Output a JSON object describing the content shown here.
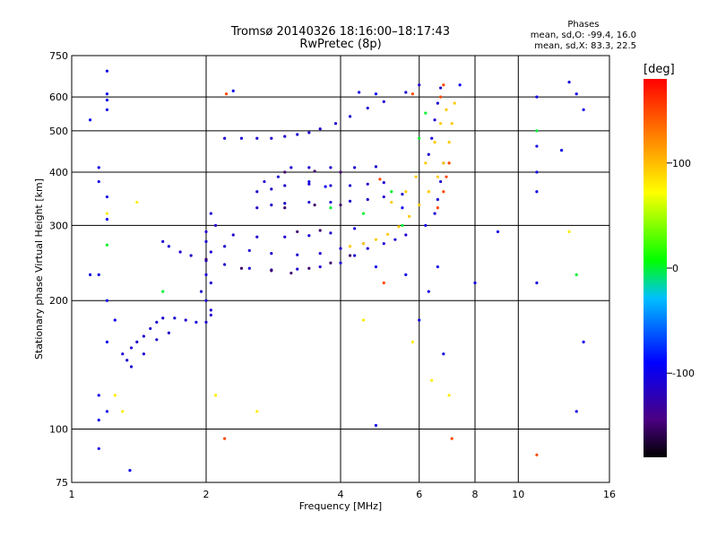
{
  "header": {
    "title": "Tromsø 20140326 18:16:00–18:17:43",
    "subtitle": "RwPretec (8p)"
  },
  "stats": {
    "heading": "Phases",
    "line_o": "mean, sd,O: -99.4, 16.0",
    "line_x": "mean, sd,X:  83.3, 22.5"
  },
  "colorbar": {
    "unit": "[deg]",
    "ticks": [
      "100",
      "0",
      "-100"
    ],
    "range": [
      -180,
      180
    ]
  },
  "chart_data": {
    "type": "scatter",
    "xlabel": "Frequency [MHz]",
    "ylabel": "Stationary phase Virtual Height [km]",
    "xscale": "log",
    "yscale": "log",
    "xlim": [
      1,
      16
    ],
    "ylim": [
      75,
      750
    ],
    "x_ticks": [
      {
        "value": 1,
        "label": "1"
      },
      {
        "value": 2,
        "label": "2"
      },
      {
        "value": 4,
        "label": "4"
      },
      {
        "value": 6,
        "label": "6"
      },
      {
        "value": 8,
        "label": "8"
      },
      {
        "value": 10,
        "label": "10"
      },
      {
        "value": 16,
        "label": "16"
      }
    ],
    "y_ticks": [
      {
        "value": 75,
        "label": "75"
      },
      {
        "value": 100,
        "label": "100"
      },
      {
        "value": 200,
        "label": "200"
      },
      {
        "value": 300,
        "label": "300"
      },
      {
        "value": 400,
        "label": "400"
      },
      {
        "value": 500,
        "label": "500"
      },
      {
        "value": 600,
        "label": "600"
      },
      {
        "value": 750,
        "label": "750"
      }
    ],
    "grid": true,
    "series": [
      {
        "phase_deg": -110,
        "points": [
          [
            1.3,
            150
          ],
          [
            1.33,
            145
          ],
          [
            1.36,
            155
          ],
          [
            1.4,
            160
          ],
          [
            1.45,
            165
          ],
          [
            1.5,
            172
          ],
          [
            1.55,
            178
          ],
          [
            1.6,
            182
          ],
          [
            1.7,
            182
          ],
          [
            1.8,
            180
          ],
          [
            1.9,
            178
          ],
          [
            2.0,
            178
          ],
          [
            2.05,
            185
          ],
          [
            1.36,
            140
          ],
          [
            1.45,
            150
          ],
          [
            1.55,
            162
          ],
          [
            1.65,
            168
          ],
          [
            1.6,
            275
          ],
          [
            1.65,
            268
          ],
          [
            1.75,
            260
          ],
          [
            1.85,
            255
          ],
          [
            2.0,
            248
          ],
          [
            2.2,
            243
          ],
          [
            2.5,
            238
          ],
          [
            2.8,
            236
          ],
          [
            3.2,
            237
          ],
          [
            3.6,
            240
          ],
          [
            4.0,
            245
          ],
          [
            4.3,
            255
          ],
          [
            4.6,
            265
          ],
          [
            5.0,
            272
          ],
          [
            5.3,
            278
          ],
          [
            5.6,
            285
          ],
          [
            2.0,
            275
          ],
          [
            2.2,
            268
          ],
          [
            2.5,
            262
          ],
          [
            2.8,
            258
          ],
          [
            3.2,
            256
          ],
          [
            3.6,
            258
          ],
          [
            4.0,
            265
          ],
          [
            4.5,
            272
          ],
          [
            2.0,
            290
          ],
          [
            2.3,
            285
          ],
          [
            2.6,
            282
          ],
          [
            3.0,
            282
          ],
          [
            3.4,
            284
          ],
          [
            3.8,
            288
          ],
          [
            4.3,
            295
          ],
          [
            2.05,
            320
          ],
          [
            2.1,
            300
          ],
          [
            2.05,
            260
          ],
          [
            2.0,
            230
          ],
          [
            2.05,
            220
          ],
          [
            1.95,
            210
          ],
          [
            2.0,
            200
          ],
          [
            2.05,
            190
          ],
          [
            2.6,
            330
          ],
          [
            2.8,
            335
          ],
          [
            3.0,
            338
          ],
          [
            3.4,
            340
          ],
          [
            3.8,
            340
          ],
          [
            4.2,
            342
          ],
          [
            4.6,
            345
          ],
          [
            5.0,
            350
          ],
          [
            5.5,
            355
          ],
          [
            2.6,
            360
          ],
          [
            2.8,
            365
          ],
          [
            3.0,
            372
          ],
          [
            3.4,
            375
          ],
          [
            3.8,
            372
          ],
          [
            4.2,
            372
          ],
          [
            4.6,
            375
          ],
          [
            5.0,
            378
          ],
          [
            2.7,
            380
          ],
          [
            2.9,
            390
          ],
          [
            3.1,
            410
          ],
          [
            3.4,
            410
          ],
          [
            3.8,
            410
          ],
          [
            4.3,
            410
          ],
          [
            4.8,
            412
          ],
          [
            2.2,
            480
          ],
          [
            2.4,
            480
          ],
          [
            2.6,
            480
          ],
          [
            2.8,
            480
          ],
          [
            3.0,
            485
          ],
          [
            3.2,
            490
          ],
          [
            3.4,
            495
          ],
          [
            3.6,
            505
          ],
          [
            3.9,
            520
          ],
          [
            4.2,
            540
          ],
          [
            4.6,
            565
          ],
          [
            5.0,
            585
          ],
          [
            5.6,
            615
          ],
          [
            6.0,
            640
          ],
          [
            6.3,
            440
          ],
          [
            6.4,
            480
          ],
          [
            6.5,
            530
          ],
          [
            6.6,
            580
          ],
          [
            6.7,
            630
          ],
          [
            6.5,
            320
          ],
          [
            6.6,
            345
          ],
          [
            6.7,
            380
          ],
          [
            6.8,
            420
          ]
        ]
      },
      {
        "phase_deg": -150,
        "points": [
          [
            2.0,
            250
          ],
          [
            2.4,
            238
          ],
          [
            2.8,
            235
          ],
          [
            3.1,
            232
          ],
          [
            3.4,
            238
          ],
          [
            3.8,
            245
          ],
          [
            4.2,
            255
          ],
          [
            3.0,
            330
          ],
          [
            3.5,
            335
          ],
          [
            4.0,
            335
          ],
          [
            3.0,
            400
          ],
          [
            3.5,
            402
          ],
          [
            4.0,
            400
          ],
          [
            3.2,
            290
          ],
          [
            3.6,
            292
          ]
        ]
      },
      {
        "phase_deg": 95,
        "points": [
          [
            4.2,
            268
          ],
          [
            4.5,
            272
          ],
          [
            4.8,
            278
          ],
          [
            5.1,
            286
          ],
          [
            5.4,
            298
          ],
          [
            5.7,
            315
          ],
          [
            6.0,
            335
          ],
          [
            6.3,
            360
          ],
          [
            6.6,
            390
          ],
          [
            6.8,
            420
          ],
          [
            7.0,
            470
          ],
          [
            7.1,
            520
          ],
          [
            7.2,
            580
          ],
          [
            5.2,
            340
          ],
          [
            5.6,
            360
          ],
          [
            5.9,
            390
          ],
          [
            6.2,
            420
          ],
          [
            6.5,
            470
          ],
          [
            6.7,
            520
          ],
          [
            6.9,
            560
          ]
        ]
      },
      {
        "phase_deg": 150,
        "points": [
          [
            6.6,
            330
          ],
          [
            6.8,
            360
          ],
          [
            6.9,
            390
          ],
          [
            7.0,
            420
          ],
          [
            6.7,
            600
          ],
          [
            6.8,
            640
          ],
          [
            5.8,
            610
          ],
          [
            4.9,
            385
          ],
          [
            5.0,
            220
          ],
          [
            2.2,
            95
          ],
          [
            7.1,
            95
          ],
          [
            2.22,
            610
          ],
          [
            11.0,
            87
          ]
        ]
      },
      {
        "phase_deg": 0,
        "points": [
          [
            4.5,
            320
          ],
          [
            5.5,
            300
          ],
          [
            3.8,
            330
          ],
          [
            6.2,
            550
          ],
          [
            5.2,
            360
          ],
          [
            11.0,
            500
          ],
          [
            13.5,
            230
          ],
          [
            1.2,
            270
          ],
          [
            1.6,
            210
          ],
          [
            6.0,
            480
          ]
        ]
      },
      {
        "phase_deg": -100,
        "points": [
          [
            1.1,
            530
          ],
          [
            1.2,
            690
          ],
          [
            1.2,
            610
          ],
          [
            1.2,
            590
          ],
          [
            1.2,
            560
          ],
          [
            1.15,
            410
          ],
          [
            1.15,
            380
          ],
          [
            1.2,
            350
          ],
          [
            1.2,
            310
          ],
          [
            1.1,
            230
          ],
          [
            1.15,
            230
          ],
          [
            1.2,
            200
          ],
          [
            1.25,
            180
          ],
          [
            1.2,
            160
          ],
          [
            1.15,
            120
          ],
          [
            1.15,
            105
          ],
          [
            1.2,
            110
          ],
          [
            1.15,
            90
          ],
          [
            1.35,
            80
          ],
          [
            2.3,
            620
          ],
          [
            4.4,
            615
          ],
          [
            4.8,
            610
          ],
          [
            5.5,
            330
          ],
          [
            6.2,
            300
          ],
          [
            6.3,
            210
          ],
          [
            7.4,
            640
          ],
          [
            8.0,
            220
          ],
          [
            9.0,
            290
          ],
          [
            11.0,
            600
          ],
          [
            11.0,
            460
          ],
          [
            11.0,
            400
          ],
          [
            11.0,
            360
          ],
          [
            12.5,
            450
          ],
          [
            13.0,
            650
          ],
          [
            13.5,
            610
          ],
          [
            14.0,
            560
          ],
          [
            13.5,
            110
          ],
          [
            14.0,
            160
          ],
          [
            11.0,
            220
          ],
          [
            4.8,
            102
          ],
          [
            6.0,
            180
          ],
          [
            6.6,
            240
          ],
          [
            4.8,
            240
          ],
          [
            5.6,
            230
          ],
          [
            6.8,
            150
          ],
          [
            3.7,
            370
          ],
          [
            3.4,
            380
          ]
        ]
      },
      {
        "phase_deg": 80,
        "points": [
          [
            1.25,
            120
          ],
          [
            1.3,
            110
          ],
          [
            2.1,
            120
          ],
          [
            2.6,
            110
          ],
          [
            5.8,
            160
          ],
          [
            6.4,
            130
          ],
          [
            1.4,
            340
          ],
          [
            1.2,
            320
          ],
          [
            4.5,
            180
          ],
          [
            13.0,
            290
          ],
          [
            7.0,
            120
          ]
        ]
      }
    ]
  }
}
